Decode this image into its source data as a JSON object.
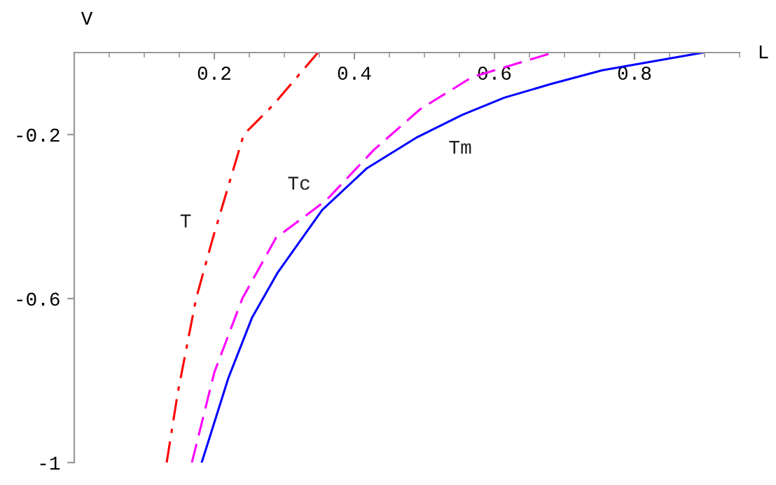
{
  "chart_data": {
    "type": "line",
    "xlabel": "L",
    "ylabel": "V",
    "xlim": [
      0,
      0.95
    ],
    "ylim": [
      -1,
      0
    ],
    "xticks": [
      0.2,
      0.4,
      0.6,
      0.8
    ],
    "yticks": [
      -1,
      -0.6,
      -0.2
    ],
    "grid": false,
    "marker": "none",
    "series": [
      {
        "name": "T",
        "color": "#ff0000",
        "line_style": "dashdot",
        "x": [
          0.132,
          0.148,
          0.174,
          0.198,
          0.242,
          0.284,
          0.348
        ],
        "values": [
          -1,
          -0.828,
          -0.6,
          -0.452,
          -0.2,
          -0.128,
          0
        ]
      },
      {
        "name": "Tc",
        "color": "#ff00ff",
        "line_style": "dashed",
        "x": [
          0.168,
          0.2,
          0.24,
          0.288,
          0.36,
          0.428,
          0.494,
          0.568,
          0.684
        ],
        "values": [
          -1,
          -0.78,
          -0.6,
          -0.452,
          -0.36,
          -0.237,
          -0.138,
          -0.06,
          0
        ]
      },
      {
        "name": "Tm",
        "color": "#0000ff",
        "line_style": "solid",
        "x": [
          0.182,
          0.22,
          0.254,
          0.29,
          0.354,
          0.418,
          0.49,
          0.554,
          0.614,
          0.68,
          0.754,
          0.898
        ],
        "values": [
          -1,
          -0.794,
          -0.646,
          -0.538,
          -0.384,
          -0.282,
          -0.206,
          -0.152,
          -0.11,
          -0.077,
          -0.043,
          0
        ]
      }
    ]
  }
}
